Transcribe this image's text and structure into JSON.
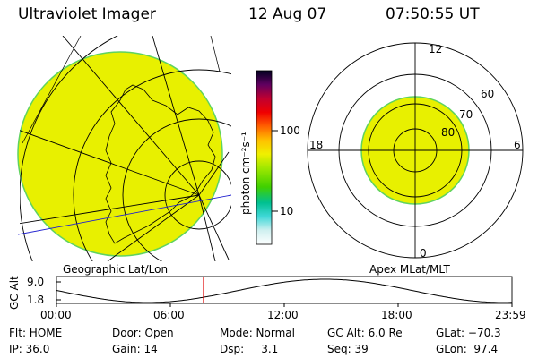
{
  "header": {
    "title": "Ultraviolet Imager",
    "date": "12 Aug 07",
    "time": "07:50:55 UT"
  },
  "colorbar": {
    "unit_label": "photon cm⁻²s⁻¹",
    "ticks": [
      "100",
      "10"
    ]
  },
  "left_map": {
    "caption": "Geographic Lat/Lon"
  },
  "right_map": {
    "caption": "Apex MLat/MLT",
    "mlt_labels": {
      "top": "12",
      "left": "18",
      "right": "6",
      "bottom": "0"
    },
    "lat_labels": [
      "60",
      "70",
      "80"
    ]
  },
  "orbit": {
    "ylabel": "GC Alt",
    "ytick_top": "9.0",
    "ytick_bottom": "1.8",
    "xticks": [
      "00:00",
      "06:00",
      "12:00",
      "18:00",
      "23:59"
    ]
  },
  "info": {
    "row1": {
      "flt": "Flt: HOME",
      "door": "Door: Open",
      "mode": "Mode: Normal",
      "gcalt": "GC Alt: 6.0 Re",
      "glat": "GLat: −70.3"
    },
    "row2": {
      "ip": "IP: 36.0",
      "gain": "Gain: 14",
      "dsp": "Dsp:     3.1",
      "seq": "Seq: 39",
      "glon": "GLon:  97.4"
    }
  },
  "colors": {
    "image_fill": "#e8f000",
    "image_edge": "#5fd35f",
    "marker": "#e00000"
  }
}
